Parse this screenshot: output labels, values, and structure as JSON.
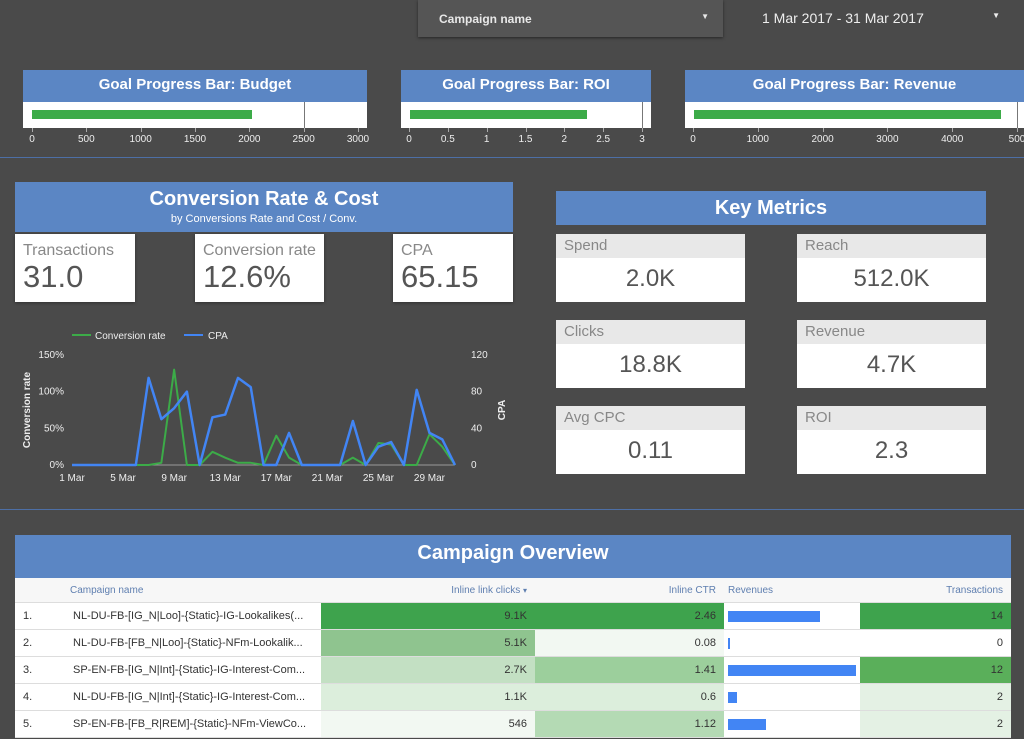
{
  "filters": {
    "campaign_label": "Campaign name",
    "date_range": "1 Mar 2017 - 31 Mar 2017"
  },
  "goal_bars": [
    {
      "title": "Goal Progress Bar: Budget",
      "progress": 2000,
      "target": 2500,
      "ticks": [
        "0",
        "500",
        "1000",
        "1500",
        "2000",
        "2500",
        "3000"
      ],
      "max": 3000
    },
    {
      "title": "Goal Progress Bar: ROI",
      "progress": 2.3,
      "target": 3,
      "ticks": [
        "0",
        "0.5",
        "1",
        "1.5",
        "2",
        "2.5",
        "3"
      ],
      "max": 3
    },
    {
      "title": "Goal Progress Bar: Revenue",
      "progress": 4700,
      "target": 5000,
      "ticks": [
        "0",
        "1000",
        "2000",
        "3000",
        "4000",
        "500"
      ],
      "max": 5000
    }
  ],
  "conversion": {
    "title": "Conversion Rate & Cost",
    "subtitle": "by Conversions Rate and Cost / Conv.",
    "scorecards": [
      {
        "label": "Transactions",
        "value": "31.0"
      },
      {
        "label": "Conversion rate",
        "value": "12.6%"
      },
      {
        "label": "CPA",
        "value": "65.15"
      }
    ]
  },
  "chart_data": {
    "type": "line",
    "x": [
      "1 Mar",
      "2 Mar",
      "3 Mar",
      "4 Mar",
      "5 Mar",
      "6 Mar",
      "7 Mar",
      "8 Mar",
      "9 Mar",
      "10 Mar",
      "11 Mar",
      "12 Mar",
      "13 Mar",
      "14 Mar",
      "15 Mar",
      "16 Mar",
      "17 Mar",
      "18 Mar",
      "19 Mar",
      "20 Mar",
      "21 Mar",
      "22 Mar",
      "23 Mar",
      "24 Mar",
      "25 Mar",
      "26 Mar",
      "27 Mar",
      "28 Mar",
      "29 Mar",
      "30 Mar",
      "31 Mar"
    ],
    "x_tick_labels": [
      "1 Mar",
      "5 Mar",
      "9 Mar",
      "13 Mar",
      "17 Mar",
      "21 Mar",
      "25 Mar",
      "29 Mar"
    ],
    "series": [
      {
        "name": "Conversion rate",
        "axis": "left",
        "color": "#3cab48",
        "values": [
          0,
          0,
          0,
          0,
          0,
          0,
          0,
          3,
          130,
          0,
          0,
          18,
          10,
          3,
          3,
          0,
          40,
          10,
          0,
          0,
          0,
          0,
          10,
          0,
          30,
          28,
          0,
          0,
          42,
          25,
          0
        ]
      },
      {
        "name": "CPA",
        "axis": "right",
        "color": "#4285f4",
        "values": [
          0,
          0,
          0,
          0,
          0,
          0,
          95,
          50,
          62,
          80,
          0,
          52,
          55,
          95,
          85,
          0,
          0,
          35,
          0,
          0,
          0,
          0,
          48,
          0,
          20,
          25,
          0,
          82,
          35,
          28,
          0
        ]
      }
    ],
    "ylabel": "Conversion rate",
    "y2label": "CPA",
    "ylim": [
      0,
      150
    ],
    "y_ticks": [
      "0%",
      "50%",
      "100%",
      "150%"
    ],
    "y2lim": [
      0,
      120
    ],
    "y2_ticks": [
      "0",
      "40",
      "80",
      "120"
    ],
    "legend_position": "top"
  },
  "key_metrics": {
    "title": "Key Metrics",
    "items": [
      {
        "label": "Spend",
        "value": "2.0K"
      },
      {
        "label": "Reach",
        "value": "512.0K"
      },
      {
        "label": "Clicks",
        "value": "18.8K"
      },
      {
        "label": "Revenue",
        "value": "4.7K"
      },
      {
        "label": "Avg CPC",
        "value": "0.11"
      },
      {
        "label": "ROI",
        "value": "2.3"
      }
    ]
  },
  "campaign_overview": {
    "title": "Campaign Overview",
    "columns": [
      "Campaign name",
      "Inline link clicks",
      "Inline CTR",
      "Revenues",
      "Transactions"
    ],
    "sort_indicator": "▾",
    "rows": [
      {
        "n": "1.",
        "name": "NL-DU-FB-[IG_N|Loo]-{Static}-IG-Lookalikes(...",
        "clicks": "9.1K",
        "ctr": "2.46",
        "revenue_fraction": 0.72,
        "transactions": "14"
      },
      {
        "n": "2.",
        "name": "NL-DU-FB-[FB_N|Loo]-{Static}-NFm-Lookalik...",
        "clicks": "5.1K",
        "ctr": "0.08",
        "revenue_fraction": 0.01,
        "transactions": "0"
      },
      {
        "n": "3.",
        "name": "SP-EN-FB-[IG_N|Int]-{Static}-IG-Interest-Com...",
        "clicks": "2.7K",
        "ctr": "1.41",
        "revenue_fraction": 1.0,
        "transactions": "12"
      },
      {
        "n": "4.",
        "name": "NL-DU-FB-[IG_N|Int]-{Static}-IG-Interest-Com...",
        "clicks": "1.1K",
        "ctr": "0.6",
        "revenue_fraction": 0.07,
        "transactions": "2"
      },
      {
        "n": "5.",
        "name": "SP-EN-FB-[FB_R|REM]-{Static}-NFm-ViewCo...",
        "clicks": "546",
        "ctr": "1.12",
        "revenue_fraction": 0.3,
        "transactions": "2"
      }
    ]
  }
}
